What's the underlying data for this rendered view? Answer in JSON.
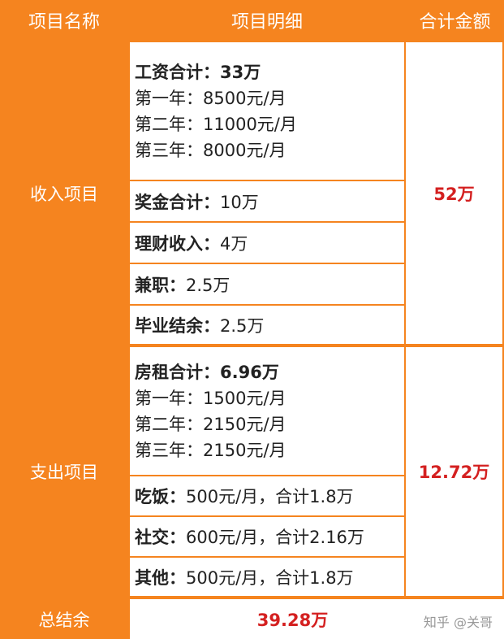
{
  "header": [
    "项目名称",
    "项目明细",
    "合计金额"
  ],
  "sections": [
    {
      "name": "收入项目",
      "total": "52万",
      "items": [
        {
          "label": "工资合计：",
          "value": "33万",
          "lines": [
            "第一年：8500元/月",
            "第二年：11000元/月",
            "第三年：8000元/月"
          ]
        },
        {
          "label": "奖金合计：",
          "value": "10万"
        },
        {
          "label": "理财收入：",
          "value": "4万"
        },
        {
          "label": "兼职：",
          "value": "2.5万"
        },
        {
          "label": "毕业结余：",
          "value": "2.5万"
        }
      ]
    },
    {
      "name": "支出项目",
      "total": "12.72万",
      "items": [
        {
          "label": "房租合计：",
          "value": "6.96万",
          "lines": [
            "第一年：1500元/月",
            "第二年：2150元/月",
            "第三年：2150元/月"
          ]
        },
        {
          "label": "吃饭：",
          "value": "500元/月，合计1.8万"
        },
        {
          "label": "社交：",
          "value": "600元/月，合计2.16万"
        },
        {
          "label": "其他：",
          "value": "500元/月，合计1.8万"
        }
      ]
    }
  ],
  "footer": {
    "name": "总结余",
    "total": "39.28万"
  },
  "watermark": "知乎 @关哥"
}
